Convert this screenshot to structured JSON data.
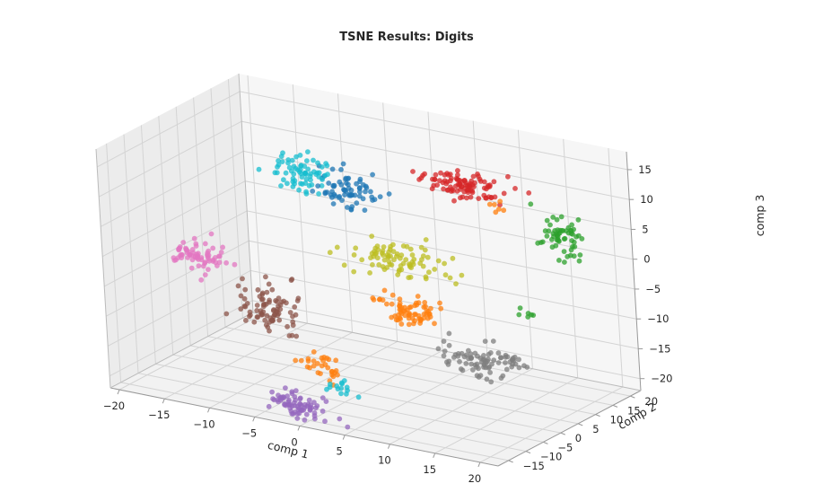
{
  "chart_data": {
    "type": "scatter",
    "subtype": "3d-scatter",
    "title": "TSNE Results: Digits",
    "xlabel": "comp 1",
    "ylabel": "comp 2",
    "zlabel": "comp 3",
    "xlim": [
      -21,
      22
    ],
    "ylim": [
      -18,
      23
    ],
    "zlim": [
      -22,
      18
    ],
    "x_ticks": [
      "−20",
      "−15",
      "−10",
      "−5",
      "0",
      "5",
      "10",
      "15",
      "20"
    ],
    "y_ticks": [
      "−15",
      "−10",
      "−5",
      "0",
      "5",
      "10",
      "15",
      "20"
    ],
    "z_ticks": [
      "−20",
      "−15",
      "−10",
      "−5",
      "0",
      "5",
      "10",
      "15"
    ],
    "grid": true,
    "legend": "none",
    "point_alpha": 0.75,
    "series": [
      {
        "color": "#1f77b4",
        "clusters": [
          {
            "center": [
              -6,
              14,
              6
            ],
            "spread": [
              3.2,
              3,
              3
            ],
            "n": 70
          }
        ]
      },
      {
        "color": "#ff7f0e",
        "clusters": [
          {
            "center": [
              8,
              -4,
              -5
            ],
            "spread": [
              2.8,
              2.6,
              2.4
            ],
            "n": 70
          },
          {
            "center": [
              -1.5,
              -7,
              -16
            ],
            "spread": [
              2.6,
              1.8,
              1.6
            ],
            "n": 30
          },
          {
            "center": [
              12,
              12,
              9
            ],
            "spread": [
              1,
              1,
              1
            ],
            "n": 6
          }
        ]
      },
      {
        "color": "#2ca02c",
        "clusters": [
          {
            "center": [
              16,
              18,
              4
            ],
            "spread": [
              2.2,
              2.4,
              3
            ],
            "n": 60
          },
          {
            "center": [
              15.5,
              8,
              -7
            ],
            "spread": [
              1,
              1,
              1
            ],
            "n": 6
          }
        ]
      },
      {
        "color": "#d62728",
        "clusters": [
          {
            "center": [
              6,
              18,
              9
            ],
            "spread": [
              4.5,
              2.5,
              2.2
            ],
            "n": 100
          }
        ]
      },
      {
        "color": "#9467bd",
        "clusters": [
          {
            "center": [
              -1,
              -15,
              -20
            ],
            "spread": [
              3,
              1.8,
              1.8
            ],
            "n": 75
          }
        ]
      },
      {
        "color": "#8c564b",
        "clusters": [
          {
            "center": [
              -9,
              -2,
              -10
            ],
            "spread": [
              2.8,
              3,
              3.4
            ],
            "n": 85
          }
        ]
      },
      {
        "color": "#e377c2",
        "clusters": [
          {
            "center": [
              -19,
              4,
              -6
            ],
            "spread": [
              2.6,
              3,
              2.2
            ],
            "n": 70
          }
        ]
      },
      {
        "color": "#7f7f7f",
        "clusters": [
          {
            "center": [
              14,
              -1,
              -12
            ],
            "spread": [
              4,
              3,
              2.2
            ],
            "n": 85
          }
        ]
      },
      {
        "color": "#bcbd22",
        "clusters": [
          {
            "center": [
              3,
              5,
              -0.5
            ],
            "spread": [
              4.5,
              2.8,
              2.5
            ],
            "n": 85
          }
        ]
      },
      {
        "color": "#17becf",
        "clusters": [
          {
            "center": [
              -10,
              11,
              9
            ],
            "spread": [
              2.5,
              3,
              2.8
            ],
            "n": 70
          },
          {
            "center": [
              1,
              -9,
              -18
            ],
            "spread": [
              1.5,
              1.2,
              1.2
            ],
            "n": 14
          }
        ]
      }
    ]
  }
}
